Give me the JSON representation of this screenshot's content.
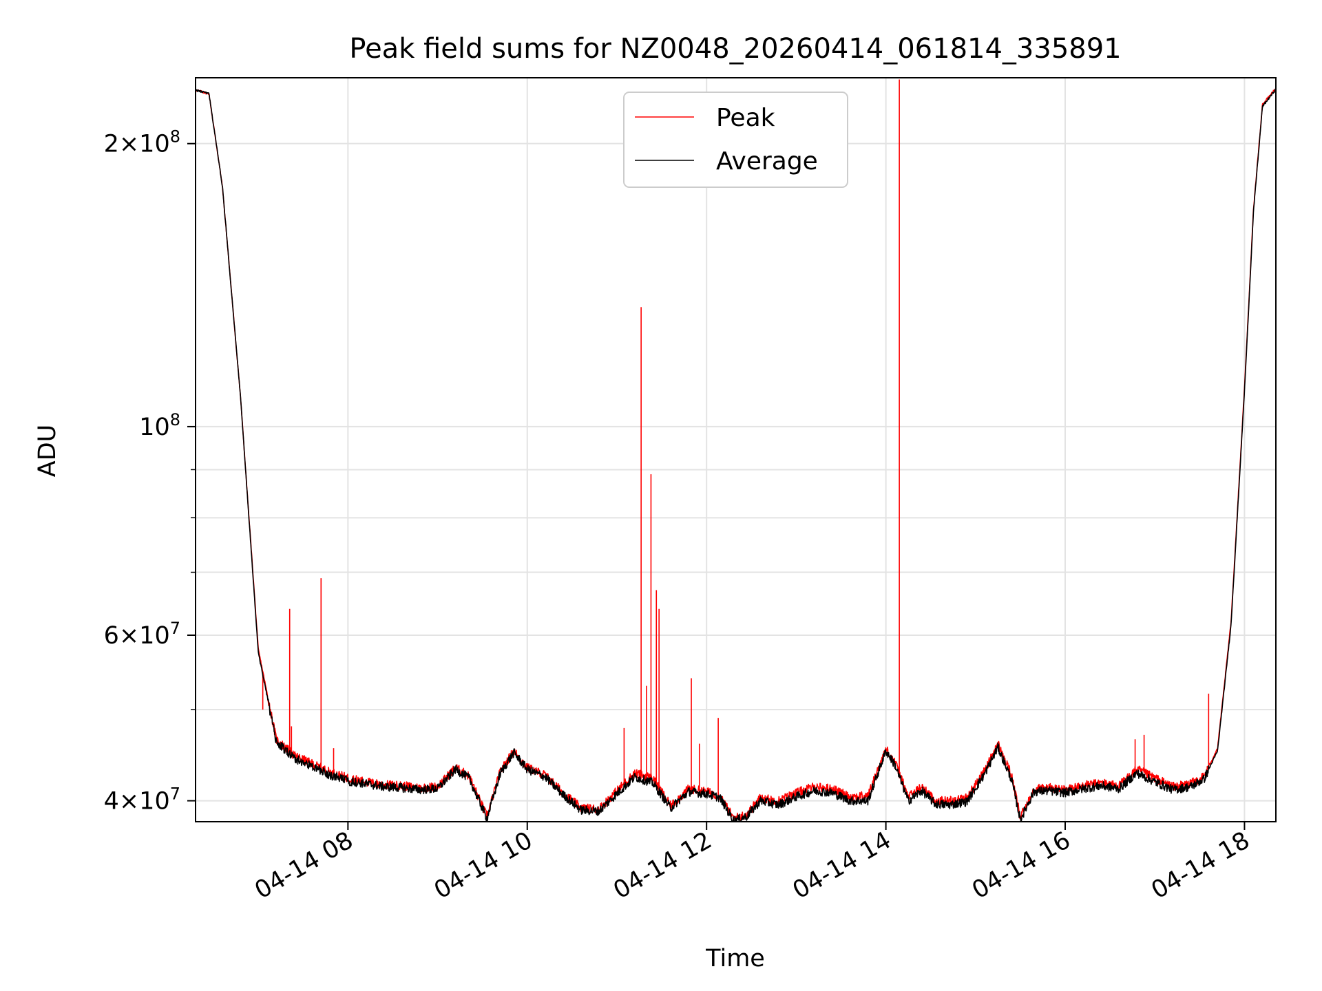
{
  "chart_data": {
    "type": "line",
    "title": "Peak field sums for NZ0048_20260414_061814_335891",
    "xlabel": "Time",
    "ylabel": "ADU",
    "yscale": "log",
    "xlim": [
      6.3,
      18.35
    ],
    "ylim": [
      38000000,
      235000000
    ],
    "grid": true,
    "legend_position": "upper center",
    "x_ticks": [
      {
        "value": 8,
        "label": "04-14 08"
      },
      {
        "value": 10,
        "label": "04-14 10"
      },
      {
        "value": 12,
        "label": "04-14 12"
      },
      {
        "value": 14,
        "label": "04-14 14"
      },
      {
        "value": 16,
        "label": "04-14 16"
      },
      {
        "value": 18,
        "label": "04-14 18"
      }
    ],
    "y_ticks": [
      {
        "value": 40000000,
        "base": "4",
        "exp": "7"
      },
      {
        "value": 60000000,
        "base": "6",
        "exp": "7"
      },
      {
        "value": 100000000,
        "base": "",
        "exp": "8"
      },
      {
        "value": 200000000,
        "base": "2",
        "exp": "8"
      }
    ],
    "y_minor": [
      50000000,
      70000000,
      80000000,
      90000000
    ],
    "series": [
      {
        "name": "Peak",
        "color": "#ff0000",
        "x": [
          6.3,
          6.45,
          6.6,
          6.8,
          7.0,
          7.2,
          7.4,
          7.6,
          7.8,
          8.0,
          8.2,
          8.4,
          8.6,
          8.8,
          9.0,
          9.2,
          9.35,
          9.55,
          9.7,
          9.85,
          10.0,
          10.2,
          10.4,
          10.6,
          10.8,
          11.0,
          11.2,
          11.4,
          11.6,
          11.8,
          12.0,
          12.15,
          12.3,
          12.45,
          12.6,
          12.8,
          13.0,
          13.2,
          13.4,
          13.6,
          13.8,
          14.0,
          14.1,
          14.25,
          14.4,
          14.55,
          14.7,
          14.9,
          15.1,
          15.25,
          15.4,
          15.5,
          15.65,
          15.8,
          16.0,
          16.2,
          16.4,
          16.6,
          16.8,
          17.0,
          17.2,
          17.4,
          17.55,
          17.7,
          17.85,
          18.0,
          18.1,
          18.2,
          18.35
        ],
        "y": [
          228000000,
          226000000,
          180000000,
          108000000,
          58000000,
          46500000,
          44700000,
          43800000,
          42900000,
          42300000,
          41900000,
          41600000,
          41500000,
          41300000,
          41400000,
          43400000,
          42500000,
          38500000,
          43000000,
          45200000,
          43400000,
          42600000,
          40800000,
          39300000,
          39200000,
          41000000,
          42800000,
          42300000,
          39500000,
          41200000,
          40900000,
          40500000,
          38300000,
          38700000,
          40300000,
          40000000,
          40800000,
          41400000,
          41200000,
          40400000,
          40500000,
          45400000,
          44000000,
          40400000,
          41400000,
          40000000,
          40000000,
          40300000,
          43000000,
          46000000,
          42600000,
          38400000,
          41200000,
          41300000,
          41100000,
          41500000,
          41800000,
          41500000,
          43200000,
          42300000,
          41400000,
          41700000,
          42500000,
          45500000,
          62000000,
          110000000,
          170000000,
          220000000,
          229000000
        ],
        "spikes": [
          {
            "x": 7.05,
            "y": 50000000
          },
          {
            "x": 7.35,
            "y": 64000000
          },
          {
            "x": 7.37,
            "y": 48000000
          },
          {
            "x": 7.7,
            "y": 69000000
          },
          {
            "x": 7.84,
            "y": 45500000
          },
          {
            "x": 11.08,
            "y": 47800000
          },
          {
            "x": 11.27,
            "y": 134000000
          },
          {
            "x": 11.33,
            "y": 53000000
          },
          {
            "x": 11.38,
            "y": 89000000
          },
          {
            "x": 11.44,
            "y": 67000000
          },
          {
            "x": 11.47,
            "y": 64000000
          },
          {
            "x": 11.83,
            "y": 54000000
          },
          {
            "x": 11.92,
            "y": 46000000
          },
          {
            "x": 12.13,
            "y": 49000000
          },
          {
            "x": 14.15,
            "y": 234000000
          },
          {
            "x": 16.78,
            "y": 46500000
          },
          {
            "x": 16.88,
            "y": 47000000
          },
          {
            "x": 17.6,
            "y": 52000000
          }
        ]
      },
      {
        "name": "Average",
        "color": "#000000",
        "x": [
          6.3,
          6.45,
          6.6,
          6.8,
          7.0,
          7.2,
          7.4,
          7.6,
          7.8,
          8.0,
          8.2,
          8.4,
          8.6,
          8.8,
          9.0,
          9.2,
          9.35,
          9.55,
          9.7,
          9.85,
          10.0,
          10.2,
          10.4,
          10.6,
          10.8,
          11.0,
          11.2,
          11.4,
          11.6,
          11.8,
          12.0,
          12.15,
          12.3,
          12.45,
          12.6,
          12.8,
          13.0,
          13.2,
          13.4,
          13.6,
          13.8,
          14.0,
          14.1,
          14.25,
          14.4,
          14.55,
          14.7,
          14.9,
          15.1,
          15.25,
          15.4,
          15.5,
          15.65,
          15.8,
          16.0,
          16.2,
          16.4,
          16.6,
          16.8,
          17.0,
          17.2,
          17.4,
          17.55,
          17.7,
          17.85,
          18.0,
          18.1,
          18.2,
          18.35
        ],
        "y": [
          228000000,
          226000000,
          180000000,
          108000000,
          57500000,
          46200000,
          44400000,
          43500000,
          42600000,
          42000000,
          41700000,
          41400000,
          41300000,
          41100000,
          41200000,
          43200000,
          42300000,
          38300000,
          42800000,
          45000000,
          43200000,
          42400000,
          40600000,
          39100000,
          39000000,
          40700000,
          42400000,
          41800000,
          39300000,
          40900000,
          40700000,
          40300000,
          38100000,
          38500000,
          40000000,
          39600000,
          40400000,
          41000000,
          40800000,
          40000000,
          40000000,
          45200000,
          43700000,
          40000000,
          41000000,
          39700000,
          39600000,
          39900000,
          42700000,
          45600000,
          42200000,
          38200000,
          40900000,
          41000000,
          40800000,
          41200000,
          41500000,
          41200000,
          42800000,
          41900000,
          41100000,
          41400000,
          42200000,
          45200000,
          61500000,
          109000000,
          169000000,
          219000000,
          228500000
        ]
      }
    ]
  }
}
